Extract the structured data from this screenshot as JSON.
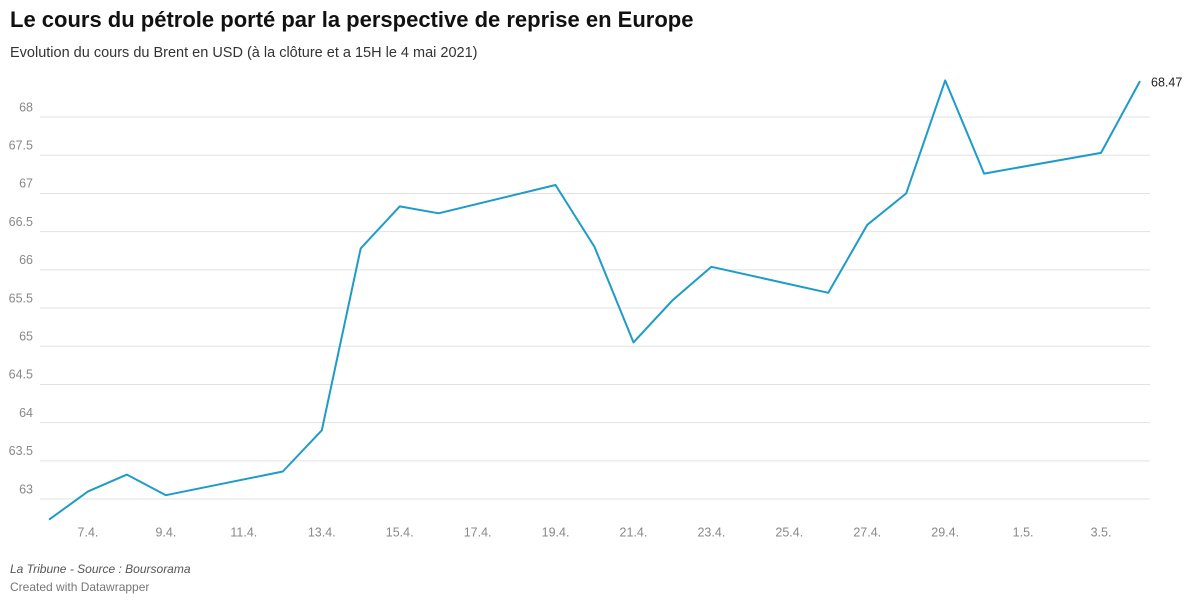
{
  "chart_data": {
    "type": "line",
    "title": "Le cours du pétrole porté par la perspective de reprise en Europe",
    "subtitle": "Evolution du cours du Brent en USD (à la clôture et a 15H le 4 mai 2021)",
    "x": [
      "6.4.",
      "7.4.",
      "8.4.",
      "9.4.",
      "12.4.",
      "13.4.",
      "14.4.",
      "15.4.",
      "16.4.",
      "19.4.",
      "20.4.",
      "21.4.",
      "22.4.",
      "23.4.",
      "26.4.",
      "27.4.",
      "28.4.",
      "29.4.",
      "30.4.",
      "3.5.",
      "4.5."
    ],
    "series": [
      {
        "name": "Brent",
        "color": "#1d9bc9",
        "values": [
          62.73,
          63.1,
          63.32,
          63.05,
          63.36,
          63.9,
          66.28,
          66.83,
          66.74,
          67.11,
          66.3,
          65.05,
          65.6,
          66.04,
          65.7,
          66.59,
          67.0,
          68.48,
          67.26,
          67.53,
          68.47
        ]
      }
    ],
    "xticks": [
      "7.4.",
      "9.4.",
      "11.4.",
      "13.4.",
      "15.4.",
      "17.4.",
      "19.4.",
      "21.4.",
      "23.4.",
      "25.4.",
      "27.4.",
      "29.4.",
      "1.5.",
      "3.5."
    ],
    "ylim": [
      62.6,
      68.6
    ],
    "yticks": [
      63,
      63.5,
      64,
      64.5,
      65,
      65.5,
      66,
      66.5,
      67,
      67.5,
      68
    ],
    "grid": true,
    "source": "La Tribune - Source : Boursorama",
    "credit": "Created with Datawrapper"
  }
}
